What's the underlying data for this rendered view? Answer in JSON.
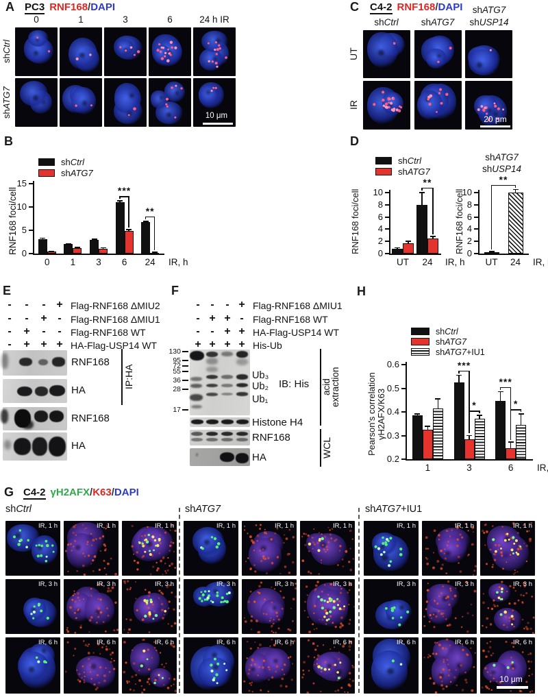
{
  "palette": {
    "red_text": "#e02621",
    "blue_text": "#2b3bc7",
    "green_text": "#2fa84c",
    "bar_black": "#111111",
    "bar_red": "#e5332e"
  },
  "panels": {
    "A": {
      "label": "A",
      "cell": "PC3",
      "stain_red": "RNF168",
      "sep": "/",
      "stain_blue": "DAPI",
      "timepoints": [
        "0",
        "1",
        "3",
        "6",
        "24 h IR"
      ],
      "rows": [
        "shCtrl",
        "shATG7"
      ],
      "scale_bar": "10 μm",
      "foci": [
        [
          2,
          2,
          5,
          16,
          12
        ],
        [
          0,
          2,
          2,
          7,
          3
        ]
      ]
    },
    "B": {
      "label": "B"
    },
    "C": {
      "label": "C",
      "cell": "C4-2",
      "stain_red": "RNF168",
      "sep": "/",
      "stain_blue": "DAPI",
      "col_top": "shATG7",
      "col_headers": [
        "shCtrl",
        "shATG7",
        "shUSP14"
      ],
      "rows": [
        "UT",
        "IR"
      ],
      "scale_bar": "20 μm",
      "foci": [
        [
          1,
          2,
          1
        ],
        [
          22,
          9,
          14
        ]
      ]
    },
    "D": {
      "label": "D"
    },
    "E": {
      "label": "E",
      "conditions": [
        {
          "signs": [
            "-",
            "-",
            "-",
            "+"
          ],
          "label": "Flag-RNF168 ΔMIU2"
        },
        {
          "signs": [
            "-",
            "-",
            "+",
            "-"
          ],
          "label": "Flag-RNF168 ΔMIU1"
        },
        {
          "signs": [
            "-",
            "+",
            "-",
            "-"
          ],
          "label": "Flag-RNF168 WT"
        },
        {
          "signs": [
            "-",
            "+",
            "+",
            "+"
          ],
          "label": "HA-Flag-USP14 WT"
        }
      ],
      "blot_labels": [
        "RNF168",
        "HA",
        "RNF168",
        "HA"
      ],
      "ip_label": "IP:HA"
    },
    "F": {
      "label": "F",
      "conditions": [
        {
          "signs": [
            "-",
            "-",
            "-",
            "+"
          ],
          "label": "Flag-RNF168 ΔMIU1"
        },
        {
          "signs": [
            "-",
            "+",
            "+",
            "-"
          ],
          "label": "Flag-RNF168 WT"
        },
        {
          "signs": [
            "-",
            "-",
            "+",
            "+"
          ],
          "label": "HA-Flag-USP14 WT"
        },
        {
          "signs": [
            "+",
            "+",
            "+",
            "+"
          ],
          "label": "His-Ub"
        }
      ],
      "markers": [
        "130",
        "95",
        "72",
        "55",
        "36",
        "28",
        "17"
      ],
      "ub_labels": [
        "Ub₃",
        "Ub₂",
        "Ub₁"
      ],
      "ib_label": "IB: His",
      "acid_label_lines": [
        "acid",
        "extraction"
      ],
      "wcl_label": "WCL",
      "blot_labels": [
        "Histone  H4",
        "RNF168",
        "HA"
      ]
    },
    "G": {
      "label": "G",
      "cell": "C4-2",
      "stain_green": "γH2AFX",
      "sep1": "/",
      "stain_red": "K63",
      "sep2": "/",
      "stain_blue": "DAPI",
      "groups": [
        "shCtrl",
        "shATG7",
        "shATG7+IU1"
      ],
      "row_labels": [
        "IR, 1 h",
        "IR, 3 h",
        "IR, 6 h"
      ],
      "col_types": [
        "green",
        "red",
        "merge"
      ],
      "foci": [
        [
          18,
          0,
          18,
          6,
          0,
          5,
          16,
          0,
          14
        ],
        [
          8,
          0,
          12,
          22,
          0,
          20,
          8,
          0,
          10
        ],
        [
          4,
          0,
          6,
          10,
          0,
          8,
          2,
          0,
          3
        ]
      ],
      "scale_bar": "10 μm"
    },
    "H": {
      "label": "H"
    }
  },
  "chart_data": [
    {
      "id": "B",
      "type": "bar",
      "categories": [
        "0",
        "1",
        "3",
        "6",
        "24"
      ],
      "xlabel": "IR, h",
      "ylabel": "RNF168 foci/cell",
      "ylim": [
        0,
        15
      ],
      "yticks": [
        "0",
        "5",
        "10",
        "15"
      ],
      "grid": false,
      "legend_position": "top-left",
      "series": [
        {
          "name": "shCtrl",
          "color": "#111111",
          "pattern": "solid",
          "values": [
            3.1,
            2.0,
            2.9,
            11.0,
            6.7
          ],
          "errors": [
            0.15,
            0.12,
            0.12,
            0.3,
            0.2
          ]
        },
        {
          "name": "shATG7",
          "color": "#e5332e",
          "pattern": "solid",
          "values": [
            0.4,
            1.2,
            1.1,
            4.9,
            0.2
          ],
          "errors": [
            0.06,
            0.1,
            0.1,
            0.2,
            0.05
          ]
        }
      ],
      "significance": [
        {
          "a": [
            3,
            0
          ],
          "b": [
            3,
            1
          ],
          "stars": "***"
        },
        {
          "a": [
            4,
            0
          ],
          "b": [
            4,
            1
          ],
          "stars": "**"
        }
      ]
    },
    {
      "id": "D1",
      "type": "bar",
      "categories": [
        "UT",
        "24"
      ],
      "xlabel": "IR, h",
      "ylabel": "RNF168 foci/cell",
      "ylim": [
        0,
        10
      ],
      "yticks": [
        "0",
        "2",
        "4",
        "6",
        "8",
        "10"
      ],
      "grid": false,
      "legend_position": "top-left",
      "series": [
        {
          "name": "shCtrl",
          "color": "#111111",
          "pattern": "solid",
          "values": [
            0.8,
            8.0
          ],
          "errors": [
            0.12,
            2.0
          ]
        },
        {
          "name": "shATG7",
          "color": "#e5332e",
          "pattern": "solid",
          "values": [
            1.7,
            2.5
          ],
          "errors": [
            0.3,
            0.3
          ]
        }
      ],
      "significance": [
        {
          "a": [
            1,
            0
          ],
          "b": [
            1,
            1
          ],
          "stars": "**"
        }
      ]
    },
    {
      "id": "D2",
      "type": "bar",
      "title_lines": [
        "shATG7",
        "shUSP14"
      ],
      "categories": [
        "UT",
        "24"
      ],
      "xlabel": "IR, h",
      "ylabel": "RNF168 foci/cell",
      "ylim": [
        0,
        10
      ],
      "yticks": [
        "0",
        "2",
        "4",
        "6",
        "8",
        "10"
      ],
      "grid": false,
      "series": [
        {
          "name": "shATG7 shUSP14",
          "color": "#111111",
          "pattern": "hatch-diag",
          "values": [
            0.25,
            10.0
          ],
          "errors": [
            0.08,
            0.45
          ]
        }
      ],
      "significance": [
        {
          "a": [
            0,
            0
          ],
          "b": [
            1,
            0
          ],
          "stars": "**"
        }
      ]
    },
    {
      "id": "H",
      "type": "bar",
      "categories": [
        "1",
        "3",
        "6"
      ],
      "xlabel": "IR, h",
      "ylabel_lines": [
        "Pearson's correlation",
        "γH2AFX/K63"
      ],
      "ylim": [
        0.2,
        0.6
      ],
      "yticks": [
        "0.2",
        "0.3",
        "0.4",
        "0.5",
        "0.6"
      ],
      "grid": false,
      "legend_position": "top-left",
      "series": [
        {
          "name": "shCtrl",
          "color": "#111111",
          "pattern": "solid",
          "values": [
            0.385,
            0.525,
            0.445
          ],
          "errors": [
            0.005,
            0.03,
            0.04
          ]
        },
        {
          "name": "shATG7",
          "color": "#e5332e",
          "pattern": "solid",
          "values": [
            0.325,
            0.285,
            0.245
          ],
          "errors": [
            0.013,
            0.015,
            0.027
          ]
        },
        {
          "name": "shATG7+IU1",
          "color": "#111111",
          "pattern": "hatch-horiz",
          "values": [
            0.415,
            0.37,
            0.345
          ],
          "errors": [
            0.04,
            0.015,
            0.045
          ]
        }
      ],
      "significance": [
        {
          "a": [
            1,
            0
          ],
          "b": [
            1,
            1
          ],
          "stars": "***"
        },
        {
          "a": [
            1,
            1
          ],
          "b": [
            1,
            2
          ],
          "stars": "*"
        },
        {
          "a": [
            2,
            0
          ],
          "b": [
            2,
            1
          ],
          "stars": "***"
        },
        {
          "a": [
            2,
            1
          ],
          "b": [
            2,
            2
          ],
          "stars": "*"
        }
      ]
    }
  ]
}
